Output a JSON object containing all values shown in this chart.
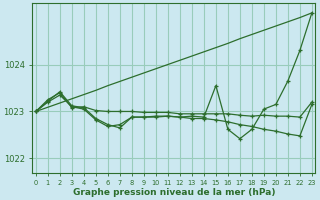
{
  "xlabel_bottom": "Graphe pression niveau de la mer (hPa)",
  "bg_color": "#cce8f0",
  "grid_color": "#99ccbb",
  "line_color": "#2d6e2d",
  "ylim": [
    1021.7,
    1025.3
  ],
  "yticks": [
    1022,
    1023,
    1024
  ],
  "xlim": [
    -0.3,
    23.3
  ],
  "series": {
    "trend": [
      1023.0,
      1023.09,
      1023.18,
      1023.27,
      1023.36,
      1023.45,
      1023.55,
      1023.64,
      1023.73,
      1023.82,
      1023.91,
      1024.0,
      1024.09,
      1024.18,
      1024.27,
      1024.36,
      1024.45,
      1024.55,
      1024.64,
      1024.73,
      1024.82,
      1024.91,
      1025.0,
      1025.1
    ],
    "line_zigzag": [
      1023.0,
      1023.2,
      1023.35,
      1023.1,
      1023.05,
      1022.82,
      1022.68,
      1022.72,
      1022.88,
      1022.88,
      1022.9,
      1022.9,
      1022.88,
      1022.9,
      1022.88,
      1023.55,
      1022.62,
      1022.42,
      1022.62,
      1023.05,
      1023.15,
      1023.65,
      1024.3,
      1025.1
    ],
    "line_flat": [
      1023.0,
      1023.25,
      1023.4,
      1023.08,
      1023.1,
      1023.02,
      1023.0,
      1023.0,
      1023.0,
      1022.98,
      1022.98,
      1022.98,
      1022.95,
      1022.95,
      1022.95,
      1022.95,
      1022.95,
      1022.92,
      1022.9,
      1022.92,
      1022.9,
      1022.9,
      1022.88,
      1023.2
    ],
    "line_decline": [
      1023.0,
      1023.22,
      1023.42,
      1023.12,
      1023.08,
      1022.85,
      1022.72,
      1022.65,
      1022.88,
      1022.88,
      1022.88,
      1022.9,
      1022.88,
      1022.85,
      1022.85,
      1022.82,
      1022.78,
      1022.72,
      1022.68,
      1022.62,
      1022.58,
      1022.52,
      1022.48,
      1023.15
    ]
  }
}
